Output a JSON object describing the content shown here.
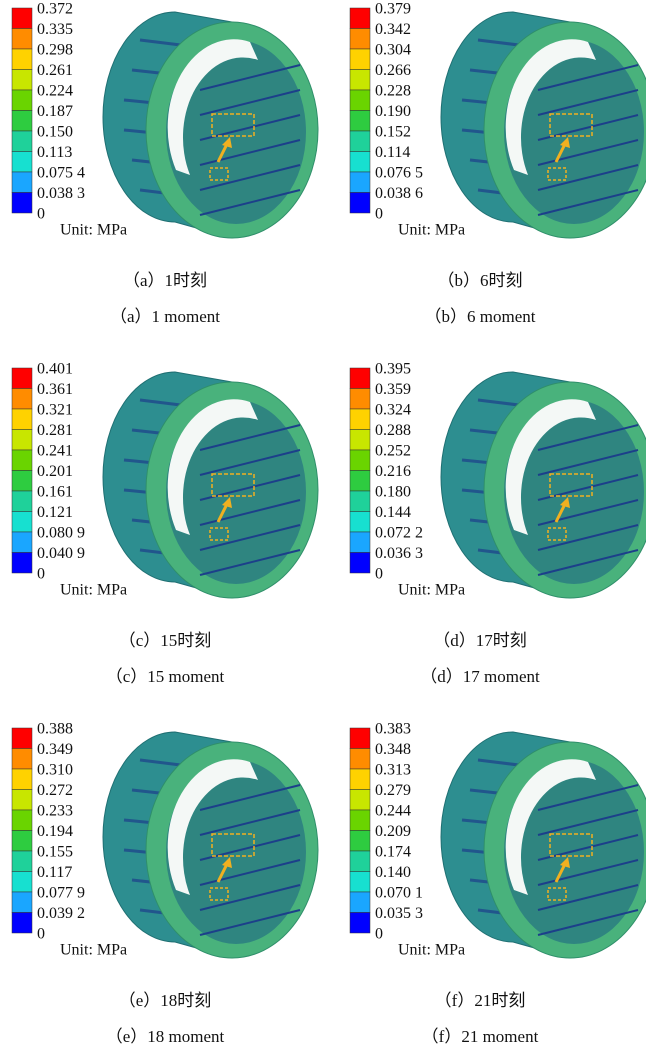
{
  "panels": [
    {
      "legend": [
        "0.372",
        "0.335",
        "0.298",
        "0.261",
        "0.224",
        "0.187",
        "0.150",
        "0.113",
        "0.075 4",
        "0.038 3",
        "0"
      ],
      "unit": "Unit: MPa",
      "caption_cn": "（a）1时刻",
      "caption_en": "（a）1 moment"
    },
    {
      "legend": [
        "0.379",
        "0.342",
        "0.304",
        "0.266",
        "0.228",
        "0.190",
        "0.152",
        "0.114",
        "0.076 5",
        "0.038 6",
        "0"
      ],
      "unit": "Unit: MPa",
      "caption_cn": "（b）6时刻",
      "caption_en": "（b）6 moment"
    },
    {
      "legend": [
        "0.401",
        "0.361",
        "0.321",
        "0.281",
        "0.241",
        "0.201",
        "0.161",
        "0.121",
        "0.080 9",
        "0.040 9",
        "0"
      ],
      "unit": "Unit: MPa",
      "caption_cn": "（c）15时刻",
      "caption_en": "（c）15 moment"
    },
    {
      "legend": [
        "0.395",
        "0.359",
        "0.324",
        "0.288",
        "0.252",
        "0.216",
        "0.180",
        "0.144",
        "0.072 2",
        "0.036 3",
        "0"
      ],
      "unit": "Unit: MPa",
      "caption_cn": "（d）17时刻",
      "caption_en": "（d）17 moment"
    },
    {
      "legend": [
        "0.388",
        "0.349",
        "0.310",
        "0.272",
        "0.233",
        "0.194",
        "0.155",
        "0.117",
        "0.077 9",
        "0.039 2",
        "0"
      ],
      "unit": "Unit: MPa",
      "caption_cn": "（e）18时刻",
      "caption_en": "（e）18 moment"
    },
    {
      "legend": [
        "0.383",
        "0.348",
        "0.313",
        "0.279",
        "0.244",
        "0.209",
        "0.174",
        "0.140",
        "0.070 1",
        "0.035 3",
        "0"
      ],
      "unit": "Unit: MPa",
      "caption_cn": "（f）21时刻",
      "caption_en": "（f）21 moment"
    }
  ]
}
